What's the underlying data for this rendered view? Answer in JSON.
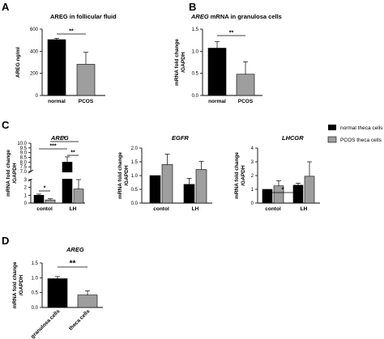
{
  "panels": {
    "A": "A",
    "B": "B",
    "C": "C",
    "D": "D"
  },
  "legend": {
    "items": [
      {
        "label": "normal theca cells",
        "color": "#000000"
      },
      {
        "label": "PCOS theca cells",
        "color": "#9e9e9e"
      }
    ]
  },
  "colors": {
    "dark": "#000000",
    "grey": "#9e9e9e"
  },
  "chart_data": [
    {
      "id": "A",
      "type": "bar",
      "title": "AREG in follicular fluid",
      "ylabel": "AREG ng/ml",
      "categories": [
        "normal",
        "PCOS"
      ],
      "values": [
        505,
        282
      ],
      "errors": [
        12,
        108
      ],
      "ylim": [
        0,
        600
      ],
      "yticks": [
        "0",
        "200",
        "400",
        "600"
      ],
      "significance": [
        {
          "between": [
            0,
            1
          ],
          "label": "**"
        }
      ]
    },
    {
      "id": "B",
      "type": "bar",
      "title": "AREG mRNA in granulosa cells",
      "title_italic": "AREG",
      "title_rest": " mRNA in granulosa cells",
      "ylabel": [
        "mRNA fold change",
        "/GAPDH"
      ],
      "categories": [
        "normal",
        "PCOS"
      ],
      "values": [
        1.07,
        0.48
      ],
      "errors": [
        0.15,
        0.28
      ],
      "ylim": [
        0,
        1.5
      ],
      "yticks": [
        "0.0",
        "0.5",
        "1.0",
        "1.5"
      ],
      "significance": [
        {
          "between": [
            0,
            1
          ],
          "label": "**"
        }
      ]
    },
    {
      "id": "C1",
      "type": "bar",
      "title": "AREG",
      "ylabel": [
        "mRNA fold change",
        "/GAPDH"
      ],
      "categories": [
        "contol",
        "LH"
      ],
      "series": [
        {
          "name": "normal theca cells",
          "values": [
            1.0,
            8.0
          ],
          "errors": [
            0.15,
            0.55
          ]
        },
        {
          "name": "PCOS theca cells",
          "values": [
            0.4,
            1.8
          ],
          "errors": [
            0.15,
            1.2
          ]
        }
      ],
      "broken_axis": {
        "lower": [
          0,
          3
        ],
        "upper": [
          7.0,
          10.0
        ]
      },
      "yticks_lower": [
        "0",
        "1",
        "2",
        "3"
      ],
      "yticks_upper": [
        "7.0",
        "7.5",
        "8.0",
        "8.5",
        "9.0",
        "9.5",
        "10.0"
      ],
      "significance": [
        {
          "between": [
            "contol-normal",
            "contol-pcos"
          ],
          "label": "*"
        },
        {
          "between": [
            "contol-normal",
            "LH-normal"
          ],
          "label": "***"
        },
        {
          "between": [
            "LH-normal",
            "LH-pcos"
          ],
          "label": "**"
        },
        {
          "between": [
            "contol-pcos",
            "LH-pcos"
          ],
          "label": "*"
        }
      ]
    },
    {
      "id": "C2",
      "type": "bar",
      "title": "EGFR",
      "ylabel": [
        "mRNA fold change",
        "/GAPDH"
      ],
      "categories": [
        "contol",
        "LH"
      ],
      "series": [
        {
          "name": "normal theca cells",
          "values": [
            1.0,
            0.68
          ],
          "errors": [
            0.0,
            0.22
          ]
        },
        {
          "name": "PCOS theca cells",
          "values": [
            1.4,
            1.22
          ],
          "errors": [
            0.38,
            0.3
          ]
        }
      ],
      "ylim": [
        0,
        2.0
      ],
      "yticks": [
        "0.0",
        "0.5",
        "1.0",
        "1.5",
        "2.0"
      ]
    },
    {
      "id": "C3",
      "type": "bar",
      "title": "LHCGR",
      "ylabel": [
        "mRNA fold change",
        "/GAPDH"
      ],
      "categories": [
        "contol",
        "LH"
      ],
      "series": [
        {
          "name": "normal theca cells",
          "values": [
            1.0,
            1.3
          ],
          "errors": [
            0.0,
            0.15
          ]
        },
        {
          "name": "PCOS theca cells",
          "values": [
            1.25,
            1.95
          ],
          "errors": [
            0.38,
            1.05
          ]
        }
      ],
      "ylim": [
        0,
        4
      ],
      "yticks": [
        "0",
        "1",
        "2",
        "3",
        "4"
      ],
      "significance": [
        {
          "between": [
            "contol-normal",
            "LH-normal"
          ],
          "label": "*"
        }
      ]
    },
    {
      "id": "D",
      "type": "bar",
      "title": "AREG",
      "ylabel": [
        "mRNA fold change",
        "/GAPDH"
      ],
      "categories": [
        "granulosa cells",
        "theca cells"
      ],
      "values": [
        0.97,
        0.42
      ],
      "errors": [
        0.07,
        0.14
      ],
      "ylim": [
        0,
        1.5
      ],
      "yticks": [
        "0.0",
        "0.5",
        "1.0",
        "1.5"
      ],
      "significance": [
        {
          "between": [
            0,
            1
          ],
          "label": "**"
        }
      ]
    }
  ]
}
